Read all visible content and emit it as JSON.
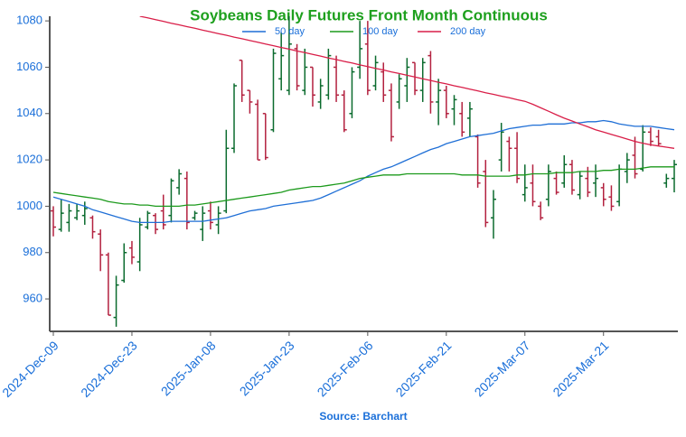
{
  "chart_data": {
    "type": "ohlc",
    "title": "Soybeans Daily Futures Front Month Continuous",
    "source": "Source: Barchart",
    "categories": [
      "2024-Dec-09",
      null,
      null,
      null,
      null,
      null,
      null,
      null,
      null,
      null,
      "2024-Dec-23",
      null,
      null,
      null,
      null,
      null,
      null,
      null,
      null,
      null,
      "2025-Jan-08",
      null,
      null,
      null,
      null,
      null,
      null,
      null,
      null,
      null,
      "2025-Jan-23",
      null,
      null,
      null,
      null,
      null,
      null,
      null,
      null,
      null,
      "2025-Feb-06",
      null,
      null,
      null,
      null,
      null,
      null,
      null,
      null,
      null,
      "2025-Feb-21",
      null,
      null,
      null,
      null,
      null,
      null,
      null,
      null,
      null,
      "2025-Mar-07",
      null,
      null,
      null,
      null,
      null,
      null,
      null,
      null,
      null,
      "2025-Mar-21",
      null,
      null,
      null,
      null,
      null,
      null,
      null,
      null,
      null
    ],
    "open": [
      998,
      990,
      993,
      995,
      996,
      995,
      988,
      979,
      952,
      968,
      982,
      976,
      991,
      996,
      998,
      996,
      1008,
      1012,
      995,
      990,
      998,
      992,
      998,
      1025,
      1063,
      1050,
      1044,
      1040,
      1033,
      1055,
      1050,
      1068,
      1050,
      1060,
      1045,
      1048,
      1060,
      1048,
      1040,
      1060,
      1070,
      1052,
      1058,
      1050,
      1045,
      1052,
      1062,
      1050,
      1065,
      1045,
      1050,
      1042,
      1040,
      1038,
      1030,
      1015,
      995,
      1020,
      1028,
      1025,
      1005,
      1010,
      1000,
      1003,
      1012,
      1010,
      1018,
      1005,
      1012,
      1010,
      1008,
      1004,
      1002,
      1015,
      1022,
      1016,
      1032,
      1030,
      1010,
      1012
    ],
    "high": [
      1000,
      1003,
      1001,
      1001,
      1002,
      996,
      990,
      980,
      970,
      984,
      985,
      995,
      998,
      997,
      1005,
      1012,
      1016,
      1015,
      998,
      1000,
      1002,
      1000,
      1033,
      1053,
      1063,
      1050,
      1046,
      1040,
      1068,
      1075,
      1082,
      1070,
      1068,
      1060,
      1055,
      1068,
      1065,
      1050,
      1060,
      1080,
      1080,
      1065,
      1062,
      1053,
      1057,
      1064,
      1062,
      1064,
      1067,
      1055,
      1052,
      1048,
      1045,
      1045,
      1031,
      1020,
      1007,
      1036,
      1030,
      1032,
      1018,
      1018,
      1002,
      1018,
      1015,
      1022,
      1020,
      1015,
      1017,
      1018,
      1010,
      1009,
      1018,
      1023,
      1030,
      1035,
      1034,
      1033,
      1014,
      1020
    ],
    "low": [
      987,
      989,
      989,
      994,
      992,
      986,
      972,
      953,
      948,
      967,
      975,
      972,
      990,
      988,
      990,
      993,
      1005,
      990,
      994,
      985,
      990,
      988,
      997,
      1023,
      1045,
      1040,
      1020,
      1020,
      1032,
      1050,
      1048,
      1050,
      1048,
      1043,
      1042,
      1046,
      1045,
      1032,
      1038,
      1055,
      1048,
      1050,
      1045,
      1028,
      1042,
      1045,
      1048,
      1045,
      1040,
      1035,
      1038,
      1035,
      1030,
      1030,
      1008,
      991,
      986,
      1015,
      1015,
      1010,
      1002,
      1000,
      994,
      1000,
      1005,
      1008,
      1005,
      1003,
      1004,
      1004,
      1000,
      998,
      1000,
      1010,
      1012,
      1015,
      1026,
      1026,
      1008,
      1006
    ],
    "close": [
      991,
      997,
      998,
      998,
      999,
      989,
      979,
      953,
      966,
      980,
      978,
      992,
      997,
      990,
      992,
      1011,
      1014,
      993,
      997,
      997,
      993,
      997,
      1025,
      1052,
      1048,
      1045,
      1020,
      1021,
      1066,
      1065,
      1070,
      1052,
      1060,
      1048,
      1052,
      1065,
      1048,
      1033,
      1058,
      1068,
      1050,
      1062,
      1048,
      1030,
      1055,
      1060,
      1050,
      1062,
      1045,
      1050,
      1040,
      1046,
      1032,
      1042,
      1010,
      993,
      1003,
      1032,
      1025,
      1012,
      1008,
      1002,
      995,
      1015,
      1006,
      1018,
      1007,
      1013,
      1006,
      1012,
      1003,
      1000,
      1016,
      1020,
      1014,
      1032,
      1028,
      1027,
      1012,
      1018
    ],
    "up_color": "#0b6b2e",
    "down_color": "#b3213f",
    "series": [
      {
        "name": "50 day",
        "color": "#1f6fd6",
        "values": [
          1004,
          1003,
          1002,
          1001,
          1000,
          998.5,
          997.5,
          996.5,
          995.5,
          994.5,
          993.5,
          993,
          993,
          993,
          993,
          993.5,
          993.5,
          993.5,
          993.5,
          993.5,
          994,
          994.5,
          995,
          996,
          997,
          998,
          998.5,
          999,
          1000,
          1000.5,
          1001,
          1001.5,
          1002,
          1002.5,
          1003.5,
          1005,
          1006.5,
          1008,
          1009.5,
          1011,
          1013,
          1014.5,
          1016,
          1017,
          1018.5,
          1020,
          1021.5,
          1023,
          1024.5,
          1025.5,
          1027,
          1028,
          1029,
          1030,
          1030.5,
          1031,
          1031.5,
          1032.5,
          1033.5,
          1034,
          1034.5,
          1035,
          1035,
          1035.5,
          1035.5,
          1035.5,
          1036,
          1036,
          1036.5,
          1036.5,
          1037,
          1036.5,
          1035.5,
          1035,
          1034.5,
          1034.5,
          1034.5,
          1034,
          1033.5,
          1033
        ]
      },
      {
        "name": "100 day",
        "color": "#1c9a1c",
        "values": [
          1006,
          1005.5,
          1005,
          1004.5,
          1004,
          1003.5,
          1003,
          1002,
          1001.5,
          1001,
          1001,
          1000.5,
          1000.5,
          1000,
          1000,
          1000,
          1000,
          1000.5,
          1000.5,
          1001,
          1001.5,
          1002,
          1002.5,
          1003,
          1003.5,
          1004,
          1004.5,
          1005,
          1005.5,
          1006,
          1007,
          1007.5,
          1008,
          1008.5,
          1008.5,
          1009,
          1009.5,
          1010,
          1011,
          1012,
          1012.5,
          1013,
          1013.5,
          1013.5,
          1013.5,
          1014,
          1014,
          1014,
          1014,
          1014,
          1014,
          1014,
          1013.5,
          1013.5,
          1013.5,
          1013,
          1013,
          1013,
          1013,
          1013.5,
          1013.5,
          1014,
          1014,
          1014,
          1014.5,
          1014.5,
          1014.5,
          1015,
          1015,
          1015,
          1015.5,
          1015.5,
          1016,
          1016,
          1016,
          1016.5,
          1017,
          1017,
          1017,
          1017
        ]
      },
      {
        "name": "200 day",
        "color": "#d91e48",
        "values": [
          null,
          null,
          null,
          null,
          null,
          null,
          null,
          null,
          null,
          null,
          null,
          1082,
          1081.3,
          1080.5,
          1079.8,
          1079,
          1078.3,
          1077.5,
          1076.8,
          1076,
          1075.3,
          1074.5,
          1073.8,
          1073,
          1072.3,
          1071.5,
          1070.8,
          1070,
          1069.3,
          1068.5,
          1067.8,
          1067,
          1066.3,
          1065.5,
          1064.8,
          1064,
          1063.3,
          1062.5,
          1061.8,
          1061,
          1060.3,
          1059.5,
          1058.8,
          1058,
          1057.3,
          1056.5,
          1055.8,
          1055,
          1054.3,
          1053.5,
          1052.8,
          1052,
          1051.3,
          1050.5,
          1049.8,
          1049,
          1048.3,
          1047.5,
          1046.8,
          1046,
          1045.3,
          1044,
          1042.5,
          1041,
          1039.5,
          1038,
          1036.8,
          1035.5,
          1034.3,
          1033,
          1032,
          1031,
          1030,
          1029,
          1028,
          1027.2,
          1026.5,
          1026,
          1025.5,
          1025
        ]
      }
    ],
    "ylim": [
      946,
      1082
    ],
    "yticks": [
      960,
      980,
      1000,
      1020,
      1040,
      1060,
      1080
    ]
  }
}
